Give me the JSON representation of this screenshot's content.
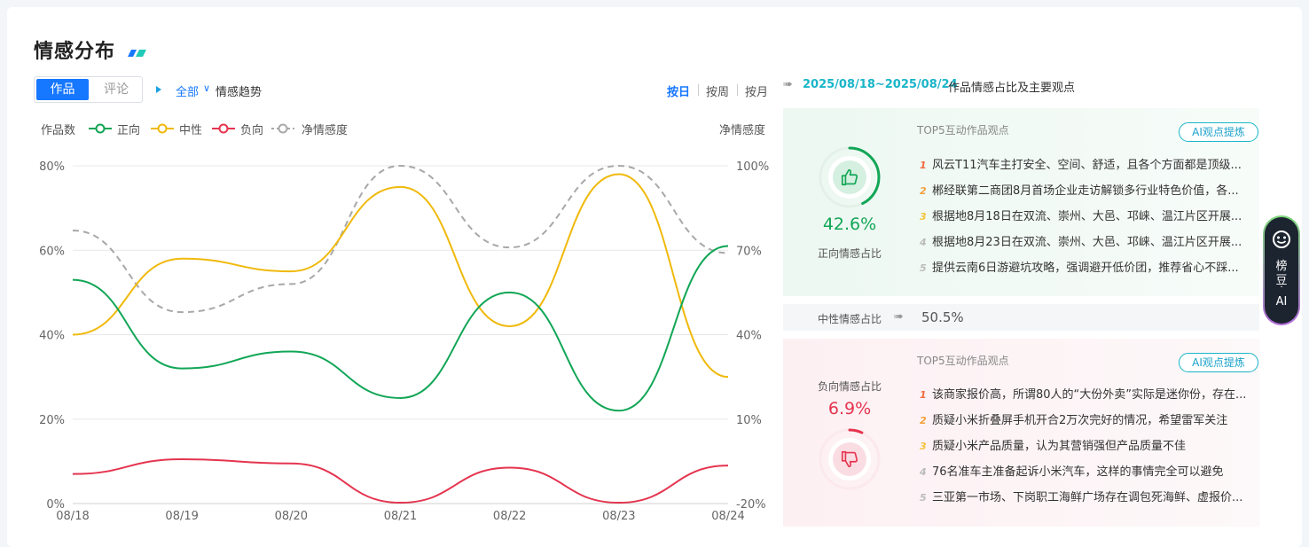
{
  "header": {
    "title": "情感分布"
  },
  "toggle": {
    "active": "作品",
    "inactive": "评论"
  },
  "filter": {
    "scope": "全部",
    "chevron": "∨",
    "trend_label": "情感趋势"
  },
  "periods": [
    "按日",
    "按周",
    "按月"
  ],
  "legend": {
    "left_axis": "作品数",
    "right_axis": "净情感度",
    "items": [
      {
        "label": "正向",
        "color": "#11a656"
      },
      {
        "label": "中性",
        "color": "#f0b90b"
      },
      {
        "label": "负向",
        "color": "#e5344f"
      },
      {
        "label": "净情感度",
        "color": "#a8a8a8"
      }
    ]
  },
  "chart_data": {
    "type": "line",
    "x": [
      "08/18",
      "08/19",
      "08/20",
      "08/21",
      "08/22",
      "08/23",
      "08/24"
    ],
    "y_left_ticks": [
      "80%",
      "60%",
      "40%",
      "20%",
      "0%"
    ],
    "y_right_ticks": [
      "100%",
      "70%",
      "40%",
      "10%",
      "-20%"
    ],
    "ylim_left": [
      0,
      80
    ],
    "ylim_right": [
      -20,
      100
    ],
    "series": [
      {
        "name": "正向",
        "axis": "left",
        "color": "#11a656",
        "values": [
          53,
          32,
          36,
          25,
          50,
          22,
          61
        ]
      },
      {
        "name": "中性",
        "axis": "left",
        "color": "#f0b90b",
        "values": [
          40,
          58,
          55,
          75,
          42,
          78,
          30
        ]
      },
      {
        "name": "负向",
        "axis": "left",
        "color": "#e5344f",
        "values": [
          7,
          10.5,
          9.5,
          0.2,
          8.5,
          0.2,
          9
        ]
      },
      {
        "name": "净情感度",
        "axis": "right",
        "color": "#a8a8a8",
        "dashed": true,
        "values": [
          77,
          48,
          58,
          100,
          71,
          100,
          69
        ]
      }
    ]
  },
  "right": {
    "range": "2025/08/18~2025/08/24",
    "range_suffix": "作品情感占比及主要观点",
    "positive": {
      "percent": "42.6%",
      "label": "正向情感占比",
      "ratio": 0.426,
      "color": "#11a656",
      "top_title": "TOP5互动作品观点",
      "ai_button": "AI观点提炼",
      "opinions": [
        "风云T11汽车主打安全、空间、舒适，且各个方面都是顶级...",
        "郴经联第二商团8月首场企业走访解锁多行业特色价值，各...",
        "根据地8月18日在双流、崇州、大邑、邛崃、温江片区开展...",
        "根据地8月23日在双流、崇州、大邑、邛崃、温江片区开展...",
        "提供云南6日游避坑攻略，强调避开低价团，推荐省心不踩..."
      ]
    },
    "neutral": {
      "label": "中性情感占比",
      "percent": "50.5%"
    },
    "negative": {
      "percent": "6.9%",
      "label": "负向情感占比",
      "ratio": 0.069,
      "color": "#e5344f",
      "top_title": "TOP5互动作品观点",
      "ai_button": "AI观点提炼",
      "opinions": [
        "该商家报价高，所谓80人的“大份外卖”实际是迷你份，存在...",
        "质疑小米折叠屏手机开合2万次完好的情况，希望雷军关注",
        "质疑小米产品质量，认为其营销强但产品质量不佳",
        "76名准车主准备起诉小米汽车，这样的事情完全可以避免",
        "三亚第一市场、下岗职工海鲜广场存在调包死海鲜、虚报价..."
      ]
    },
    "rank_numbers": [
      "1",
      "2",
      "3",
      "4",
      "5"
    ],
    "rank_colors": [
      "#f06b3f",
      "#f3a03c",
      "#f5c33b",
      "#bbbbbb",
      "#bbbbbb"
    ]
  },
  "assistant": {
    "line1": "榜",
    "line2": "豆",
    "dot": "·",
    "line3": "AI"
  }
}
